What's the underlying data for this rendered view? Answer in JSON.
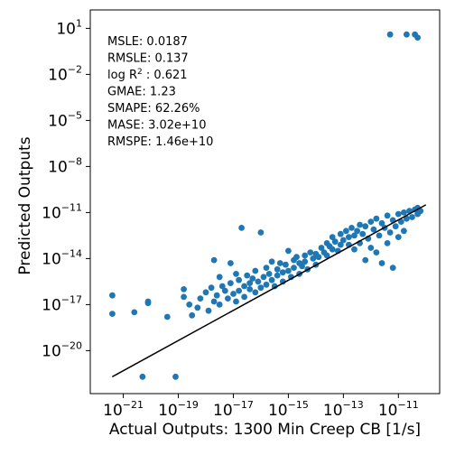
{
  "chart_data": {
    "type": "scatter",
    "xlabel": "Actual Outputs: 1300 Min Creep CB [1/s]",
    "ylabel": "Predicted Outputs",
    "xscale": "log",
    "yscale": "log",
    "xlim_exp": [
      -22.2,
      -9.5
    ],
    "ylim_exp": [
      -22.8,
      2.2
    ],
    "xticks": [
      {
        "base": "10",
        "exp": "−21",
        "value": -21
      },
      {
        "base": "10",
        "exp": "−19",
        "value": -19
      },
      {
        "base": "10",
        "exp": "−17",
        "value": -17
      },
      {
        "base": "10",
        "exp": "−15",
        "value": -15
      },
      {
        "base": "10",
        "exp": "−13",
        "value": -13
      },
      {
        "base": "10",
        "exp": "−11",
        "value": -11
      }
    ],
    "yticks": [
      {
        "base": "10",
        "exp": "1",
        "value": 1
      },
      {
        "base": "10",
        "exp": "−2",
        "value": -2
      },
      {
        "base": "10",
        "exp": "−5",
        "value": -5
      },
      {
        "base": "10",
        "exp": "−8",
        "value": -8
      },
      {
        "base": "10",
        "exp": "−11",
        "value": -11
      },
      {
        "base": "10",
        "exp": "−14",
        "value": -14
      },
      {
        "base": "10",
        "exp": "−17",
        "value": -17
      },
      {
        "base": "10",
        "exp": "−20",
        "value": -20
      }
    ],
    "fit_line": {
      "x_exp": [
        -21.4,
        -10.0
      ],
      "y_exp": [
        -21.7,
        -10.5
      ]
    },
    "marker_color": "#1f77b4",
    "line_color": "#000000",
    "metrics": [
      {
        "label": "MSLE: 0.0187"
      },
      {
        "label": "RMSLE: 0.137"
      },
      {
        "label": "log R",
        "sup": "2",
        "suffix": " : 0.621"
      },
      {
        "label": "GMAE: 1.23"
      },
      {
        "label": "SMAPE: 62.26%"
      },
      {
        "label": "MASE: 3.02e+10"
      },
      {
        "label": "RMSPE: 1.46e+10"
      }
    ],
    "points_log10": [
      [
        -21.4,
        -16.4
      ],
      [
        -21.4,
        -17.6
      ],
      [
        -20.6,
        -17.5
      ],
      [
        -20.3,
        -21.7
      ],
      [
        -20.1,
        -16.8
      ],
      [
        -20.1,
        -16.9
      ],
      [
        -19.1,
        -21.7
      ],
      [
        -19.4,
        -17.8
      ],
      [
        -18.8,
        -16.5
      ],
      [
        -18.8,
        -16.0
      ],
      [
        -18.6,
        -17.0
      ],
      [
        -18.5,
        -17.7
      ],
      [
        -18.3,
        -17.2
      ],
      [
        -18.2,
        -16.6
      ],
      [
        -18.0,
        -16.2
      ],
      [
        -17.9,
        -17.4
      ],
      [
        -17.8,
        -15.9
      ],
      [
        -17.7,
        -14.1
      ],
      [
        -17.7,
        -16.8
      ],
      [
        -17.6,
        -16.4
      ],
      [
        -17.5,
        -15.2
      ],
      [
        -17.5,
        -17.0
      ],
      [
        -17.4,
        -15.8
      ],
      [
        -17.3,
        -16.1
      ],
      [
        -17.2,
        -16.6
      ],
      [
        -17.1,
        -14.3
      ],
      [
        -17.1,
        -15.6
      ],
      [
        -17.0,
        -16.3
      ],
      [
        -16.9,
        -15.0
      ],
      [
        -16.9,
        -16.8
      ],
      [
        -16.8,
        -15.4
      ],
      [
        -16.8,
        -16.1
      ],
      [
        -16.7,
        -12.0
      ],
      [
        -16.6,
        -15.8
      ],
      [
        -16.6,
        -16.5
      ],
      [
        -16.5,
        -15.1
      ],
      [
        -16.4,
        -16.0
      ],
      [
        -16.4,
        -15.6
      ],
      [
        -16.3,
        -15.3
      ],
      [
        -16.2,
        -14.8
      ],
      [
        -16.2,
        -16.2
      ],
      [
        -16.1,
        -15.5
      ],
      [
        -16.0,
        -12.3
      ],
      [
        -16.0,
        -15.9
      ],
      [
        -15.9,
        -15.2
      ],
      [
        -15.8,
        -14.6
      ],
      [
        -15.8,
        -15.7
      ],
      [
        -15.7,
        -15.0
      ],
      [
        -15.6,
        -14.2
      ],
      [
        -15.6,
        -15.4
      ],
      [
        -15.5,
        -15.8
      ],
      [
        -15.4,
        -14.7
      ],
      [
        -15.4,
        -15.1
      ],
      [
        -15.3,
        -14.3
      ],
      [
        -15.2,
        -14.9
      ],
      [
        -15.2,
        -15.5
      ],
      [
        -15.1,
        -14.4
      ],
      [
        -15.0,
        -13.5
      ],
      [
        -15.0,
        -14.8
      ],
      [
        -14.9,
        -15.2
      ],
      [
        -14.8,
        -14.1
      ],
      [
        -14.8,
        -14.6
      ],
      [
        -14.7,
        -13.9
      ],
      [
        -14.6,
        -14.3
      ],
      [
        -14.6,
        -15.0
      ],
      [
        -14.5,
        -14.5
      ],
      [
        -14.4,
        -13.8
      ],
      [
        -14.4,
        -14.2
      ],
      [
        -14.3,
        -14.7
      ],
      [
        -14.2,
        -13.6
      ],
      [
        -14.1,
        -14.0
      ],
      [
        -14.0,
        -13.7
      ],
      [
        -14.0,
        -14.4
      ],
      [
        -13.9,
        -13.9
      ],
      [
        -13.8,
        -13.3
      ],
      [
        -13.7,
        -13.6
      ],
      [
        -13.6,
        -13.0
      ],
      [
        -13.6,
        -13.8
      ],
      [
        -13.5,
        -13.2
      ],
      [
        -13.4,
        -12.6
      ],
      [
        -13.4,
        -13.4
      ],
      [
        -13.3,
        -12.9
      ],
      [
        -13.2,
        -13.5
      ],
      [
        -13.1,
        -12.4
      ],
      [
        -13.1,
        -13.1
      ],
      [
        -13.0,
        -12.8
      ],
      [
        -12.9,
        -12.2
      ],
      [
        -12.8,
        -13.1
      ],
      [
        -12.8,
        -12.6
      ],
      [
        -12.7,
        -12.0
      ],
      [
        -12.6,
        -12.5
      ],
      [
        -12.6,
        -13.4
      ],
      [
        -12.5,
        -12.2
      ],
      [
        -12.4,
        -11.8
      ],
      [
        -12.4,
        -13.0
      ],
      [
        -12.3,
        -12.4
      ],
      [
        -12.2,
        -14.1
      ],
      [
        -12.2,
        -11.9
      ],
      [
        -12.1,
        -12.7
      ],
      [
        -12.0,
        -11.6
      ],
      [
        -12.0,
        -13.3
      ],
      [
        -11.9,
        -12.1
      ],
      [
        -11.8,
        -11.4
      ],
      [
        -11.8,
        -13.6
      ],
      [
        -11.7,
        -12.5
      ],
      [
        -11.6,
        -11.7
      ],
      [
        -11.6,
        -14.3
      ],
      [
        -11.5,
        -12.0
      ],
      [
        -11.4,
        -11.2
      ],
      [
        -11.4,
        -13.0
      ],
      [
        -11.3,
        -12.3
      ],
      [
        -11.2,
        -11.5
      ],
      [
        -11.2,
        -14.6
      ],
      [
        -11.1,
        -11.9
      ],
      [
        -11.0,
        -11.1
      ],
      [
        -11.0,
        -12.6
      ],
      [
        -10.9,
        -11.6
      ],
      [
        -10.8,
        -11.0
      ],
      [
        -10.8,
        -12.2
      ],
      [
        -10.7,
        -11.4
      ],
      [
        -10.6,
        -10.9
      ],
      [
        -10.5,
        -11.3
      ],
      [
        -10.4,
        -10.8
      ],
      [
        -10.3,
        -11.1
      ],
      [
        -10.3,
        -10.7
      ],
      [
        -10.2,
        -10.9
      ],
      [
        -11.3,
        0.6
      ],
      [
        -10.7,
        0.6
      ],
      [
        -10.4,
        0.6
      ],
      [
        -10.3,
        0.4
      ]
    ]
  }
}
